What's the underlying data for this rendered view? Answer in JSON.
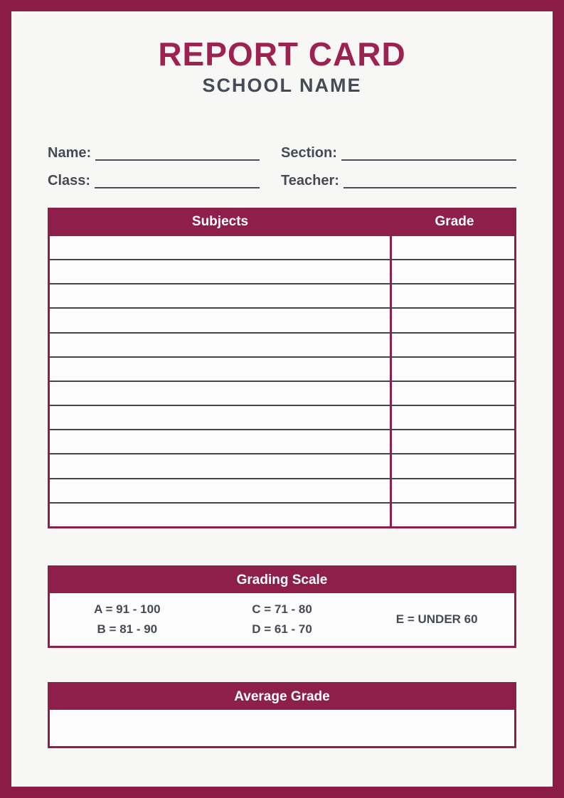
{
  "page": {
    "title": "REPORT CARD",
    "subtitle": "SCHOOL NAME"
  },
  "student_info": {
    "fields": [
      {
        "id": "name",
        "label": "Name:",
        "value": ""
      },
      {
        "id": "section",
        "label": "Section:",
        "value": ""
      },
      {
        "id": "class",
        "label": "Class:",
        "value": ""
      },
      {
        "id": "teacher",
        "label": "Teacher:",
        "value": ""
      }
    ]
  },
  "grades_table": {
    "columns": [
      "Subjects",
      "Grade"
    ],
    "row_count": 12,
    "rows": [
      {
        "subject": "",
        "grade": ""
      },
      {
        "subject": "",
        "grade": ""
      },
      {
        "subject": "",
        "grade": ""
      },
      {
        "subject": "",
        "grade": ""
      },
      {
        "subject": "",
        "grade": ""
      },
      {
        "subject": "",
        "grade": ""
      },
      {
        "subject": "",
        "grade": ""
      },
      {
        "subject": "",
        "grade": ""
      },
      {
        "subject": "",
        "grade": ""
      },
      {
        "subject": "",
        "grade": ""
      },
      {
        "subject": "",
        "grade": ""
      },
      {
        "subject": "",
        "grade": ""
      }
    ]
  },
  "grading_scale": {
    "header": "Grading Scale",
    "columns": [
      {
        "lines": [
          "A = 91 - 100",
          "B = 81 - 90"
        ]
      },
      {
        "lines": [
          "C = 71 - 80",
          "D = 61 - 70"
        ]
      },
      {
        "lines": [
          "E = UNDER 60"
        ]
      }
    ]
  },
  "average_grade": {
    "header": "Average Grade",
    "value": ""
  },
  "colors": {
    "brand_maroon": "#9D2151",
    "bar_maroon": "#8E1F4A",
    "border_maroon": "#8A1C45",
    "dark_text": "#464A54",
    "line_gray": "#4A4D55",
    "row_line": "#43464D",
    "page_bg": "#F7F7F6",
    "panel_bg": "#FCFCFC"
  }
}
